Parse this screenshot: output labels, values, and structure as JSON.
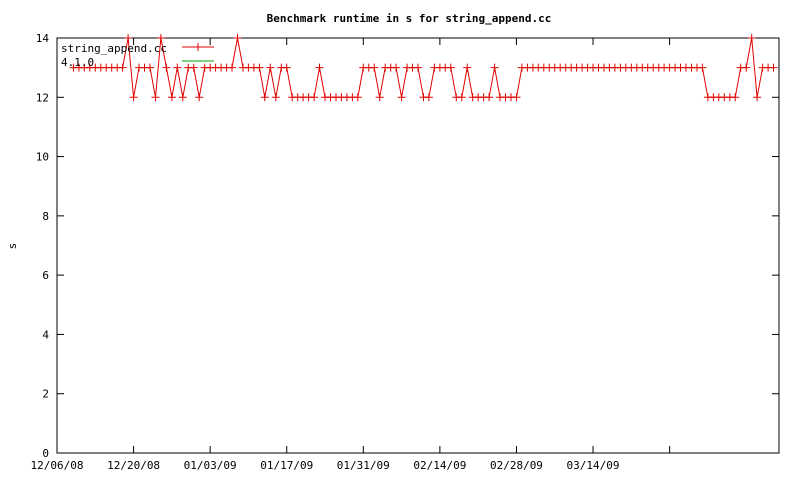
{
  "chart_data": {
    "type": "line",
    "title": "Benchmark runtime in s for string_append.cc",
    "xlabel": "",
    "ylabel": "s",
    "xlim": [
      "2008-12-06",
      "2009-04-17"
    ],
    "ylim": [
      0,
      14
    ],
    "x_ticks": [
      "12/06/08",
      "12/20/08",
      "01/03/09",
      "01/17/09",
      "01/31/09",
      "02/14/09",
      "02/28/09",
      "03/14/09"
    ],
    "y_ticks": [
      0,
      2,
      4,
      6,
      8,
      10,
      12,
      14
    ],
    "grid": false,
    "legend_position": "top-left",
    "colors": {
      "series1": "#e00000",
      "series2": "#00a000",
      "axes": "#000000"
    },
    "series": [
      {
        "name": "string_append.cc",
        "marker": "plus",
        "x": [
          "2008-12-09",
          "2008-12-10",
          "2008-12-11",
          "2008-12-12",
          "2008-12-13",
          "2008-12-14",
          "2008-12-15",
          "2008-12-16",
          "2008-12-17",
          "2008-12-18",
          "2008-12-19",
          "2008-12-20",
          "2008-12-21",
          "2008-12-22",
          "2008-12-23",
          "2008-12-24",
          "2008-12-25",
          "2008-12-26",
          "2008-12-27",
          "2008-12-28",
          "2008-12-29",
          "2008-12-30",
          "2008-12-31",
          "2009-01-01",
          "2009-01-02",
          "2009-01-03",
          "2009-01-04",
          "2009-01-05",
          "2009-01-06",
          "2009-01-07",
          "2009-01-08",
          "2009-01-09",
          "2009-01-10",
          "2009-01-11",
          "2009-01-12",
          "2009-01-13",
          "2009-01-14",
          "2009-01-15",
          "2009-01-16",
          "2009-01-17",
          "2009-01-18",
          "2009-01-19",
          "2009-01-20",
          "2009-01-21",
          "2009-01-22",
          "2009-01-23",
          "2009-01-24",
          "2009-01-25",
          "2009-01-26",
          "2009-01-27",
          "2009-01-28",
          "2009-01-29",
          "2009-01-30",
          "2009-01-31",
          "2009-02-01",
          "2009-02-02",
          "2009-02-03",
          "2009-02-04",
          "2009-02-05",
          "2009-02-06",
          "2009-02-07",
          "2009-02-08",
          "2009-02-09",
          "2009-02-10",
          "2009-02-11",
          "2009-02-12",
          "2009-02-13",
          "2009-02-14",
          "2009-02-15",
          "2009-02-16",
          "2009-02-17",
          "2009-02-18",
          "2009-02-19",
          "2009-02-20",
          "2009-02-21",
          "2009-02-22",
          "2009-02-23",
          "2009-02-24",
          "2009-02-25",
          "2009-02-26",
          "2009-02-27",
          "2009-02-28",
          "2009-03-01",
          "2009-03-02",
          "2009-03-03",
          "2009-03-04",
          "2009-03-05",
          "2009-03-06",
          "2009-03-07",
          "2009-03-08",
          "2009-03-09",
          "2009-03-10",
          "2009-03-11",
          "2009-03-12",
          "2009-03-13",
          "2009-03-14",
          "2009-03-15",
          "2009-03-16",
          "2009-03-17",
          "2009-03-18",
          "2009-03-19",
          "2009-03-20",
          "2009-03-21",
          "2009-03-22",
          "2009-03-23",
          "2009-03-24",
          "2009-03-25",
          "2009-03-26",
          "2009-03-27",
          "2009-03-28",
          "2009-03-29",
          "2009-03-30",
          "2009-03-31",
          "2009-04-01",
          "2009-04-02",
          "2009-04-03",
          "2009-04-04",
          "2009-04-05",
          "2009-04-06",
          "2009-04-07",
          "2009-04-08",
          "2009-04-09",
          "2009-04-10",
          "2009-04-11",
          "2009-04-12",
          "2009-04-13",
          "2009-04-14",
          "2009-04-15",
          "2009-04-16"
        ],
        "y": [
          13,
          13,
          13,
          13,
          13,
          13,
          13,
          13,
          13,
          13,
          14,
          12,
          13,
          13,
          13,
          12,
          14,
          13,
          12,
          13,
          12,
          13,
          13,
          12,
          13,
          13,
          13,
          13,
          13,
          13,
          14,
          13,
          13,
          13,
          13,
          12,
          13,
          12,
          13,
          13,
          12,
          12,
          12,
          12,
          12,
          13,
          12,
          12,
          12,
          12,
          12,
          12,
          12,
          13,
          13,
          13,
          12,
          13,
          13,
          13,
          12,
          13,
          13,
          13,
          12,
          12,
          13,
          13,
          13,
          13,
          12,
          12,
          13,
          12,
          12,
          12,
          12,
          13,
          12,
          12,
          12,
          12,
          13,
          13,
          13,
          13,
          13,
          13,
          13,
          13,
          13,
          13,
          13,
          13,
          13,
          13,
          13,
          13,
          13,
          13,
          13,
          13,
          13,
          13,
          13,
          13,
          13,
          13,
          13,
          13,
          13,
          13,
          13,
          13,
          13,
          13,
          12,
          12,
          12,
          12,
          12,
          12,
          13,
          13,
          14,
          12,
          13,
          13,
          13
        ]
      },
      {
        "name": "4.1.0",
        "x": [],
        "y": []
      }
    ]
  }
}
